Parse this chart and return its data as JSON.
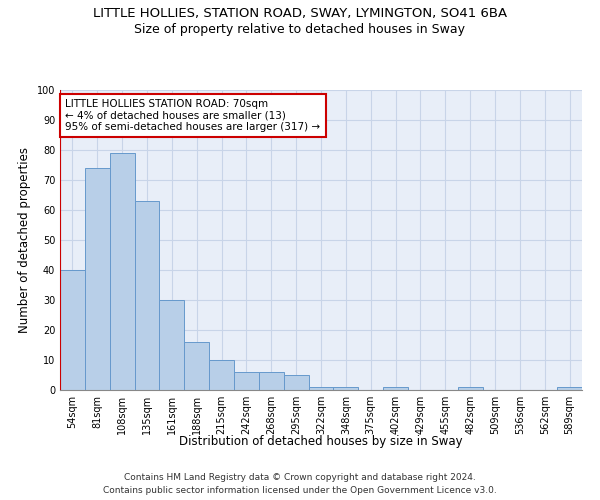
{
  "title": "LITTLE HOLLIES, STATION ROAD, SWAY, LYMINGTON, SO41 6BA",
  "subtitle": "Size of property relative to detached houses in Sway",
  "xlabel": "Distribution of detached houses by size in Sway",
  "ylabel": "Number of detached properties",
  "categories": [
    "54sqm",
    "81sqm",
    "108sqm",
    "135sqm",
    "161sqm",
    "188sqm",
    "215sqm",
    "242sqm",
    "268sqm",
    "295sqm",
    "322sqm",
    "348sqm",
    "375sqm",
    "402sqm",
    "429sqm",
    "455sqm",
    "482sqm",
    "509sqm",
    "536sqm",
    "562sqm",
    "589sqm"
  ],
  "values": [
    40,
    74,
    79,
    63,
    30,
    16,
    10,
    6,
    6,
    5,
    1,
    1,
    0,
    1,
    0,
    0,
    1,
    0,
    0,
    0,
    1
  ],
  "bar_color": "#b8cfe8",
  "bar_edge_color": "#6699cc",
  "annotation_box_color": "#ffffff",
  "annotation_border_color": "#cc0000",
  "annotation_text_line1": "LITTLE HOLLIES STATION ROAD: 70sqm",
  "annotation_text_line2": "← 4% of detached houses are smaller (13)",
  "annotation_text_line3": "95% of semi-detached houses are larger (317) →",
  "red_line_index": 0,
  "ylim": [
    0,
    100
  ],
  "yticks": [
    0,
    10,
    20,
    30,
    40,
    50,
    60,
    70,
    80,
    90,
    100
  ],
  "grid_color": "#c8d4e8",
  "background_color": "#e8eef8",
  "footer_line1": "Contains HM Land Registry data © Crown copyright and database right 2024.",
  "footer_line2": "Contains public sector information licensed under the Open Government Licence v3.0.",
  "title_fontsize": 9.5,
  "subtitle_fontsize": 9,
  "axis_label_fontsize": 8.5,
  "tick_fontsize": 7,
  "annotation_fontsize": 7.5,
  "footer_fontsize": 6.5
}
